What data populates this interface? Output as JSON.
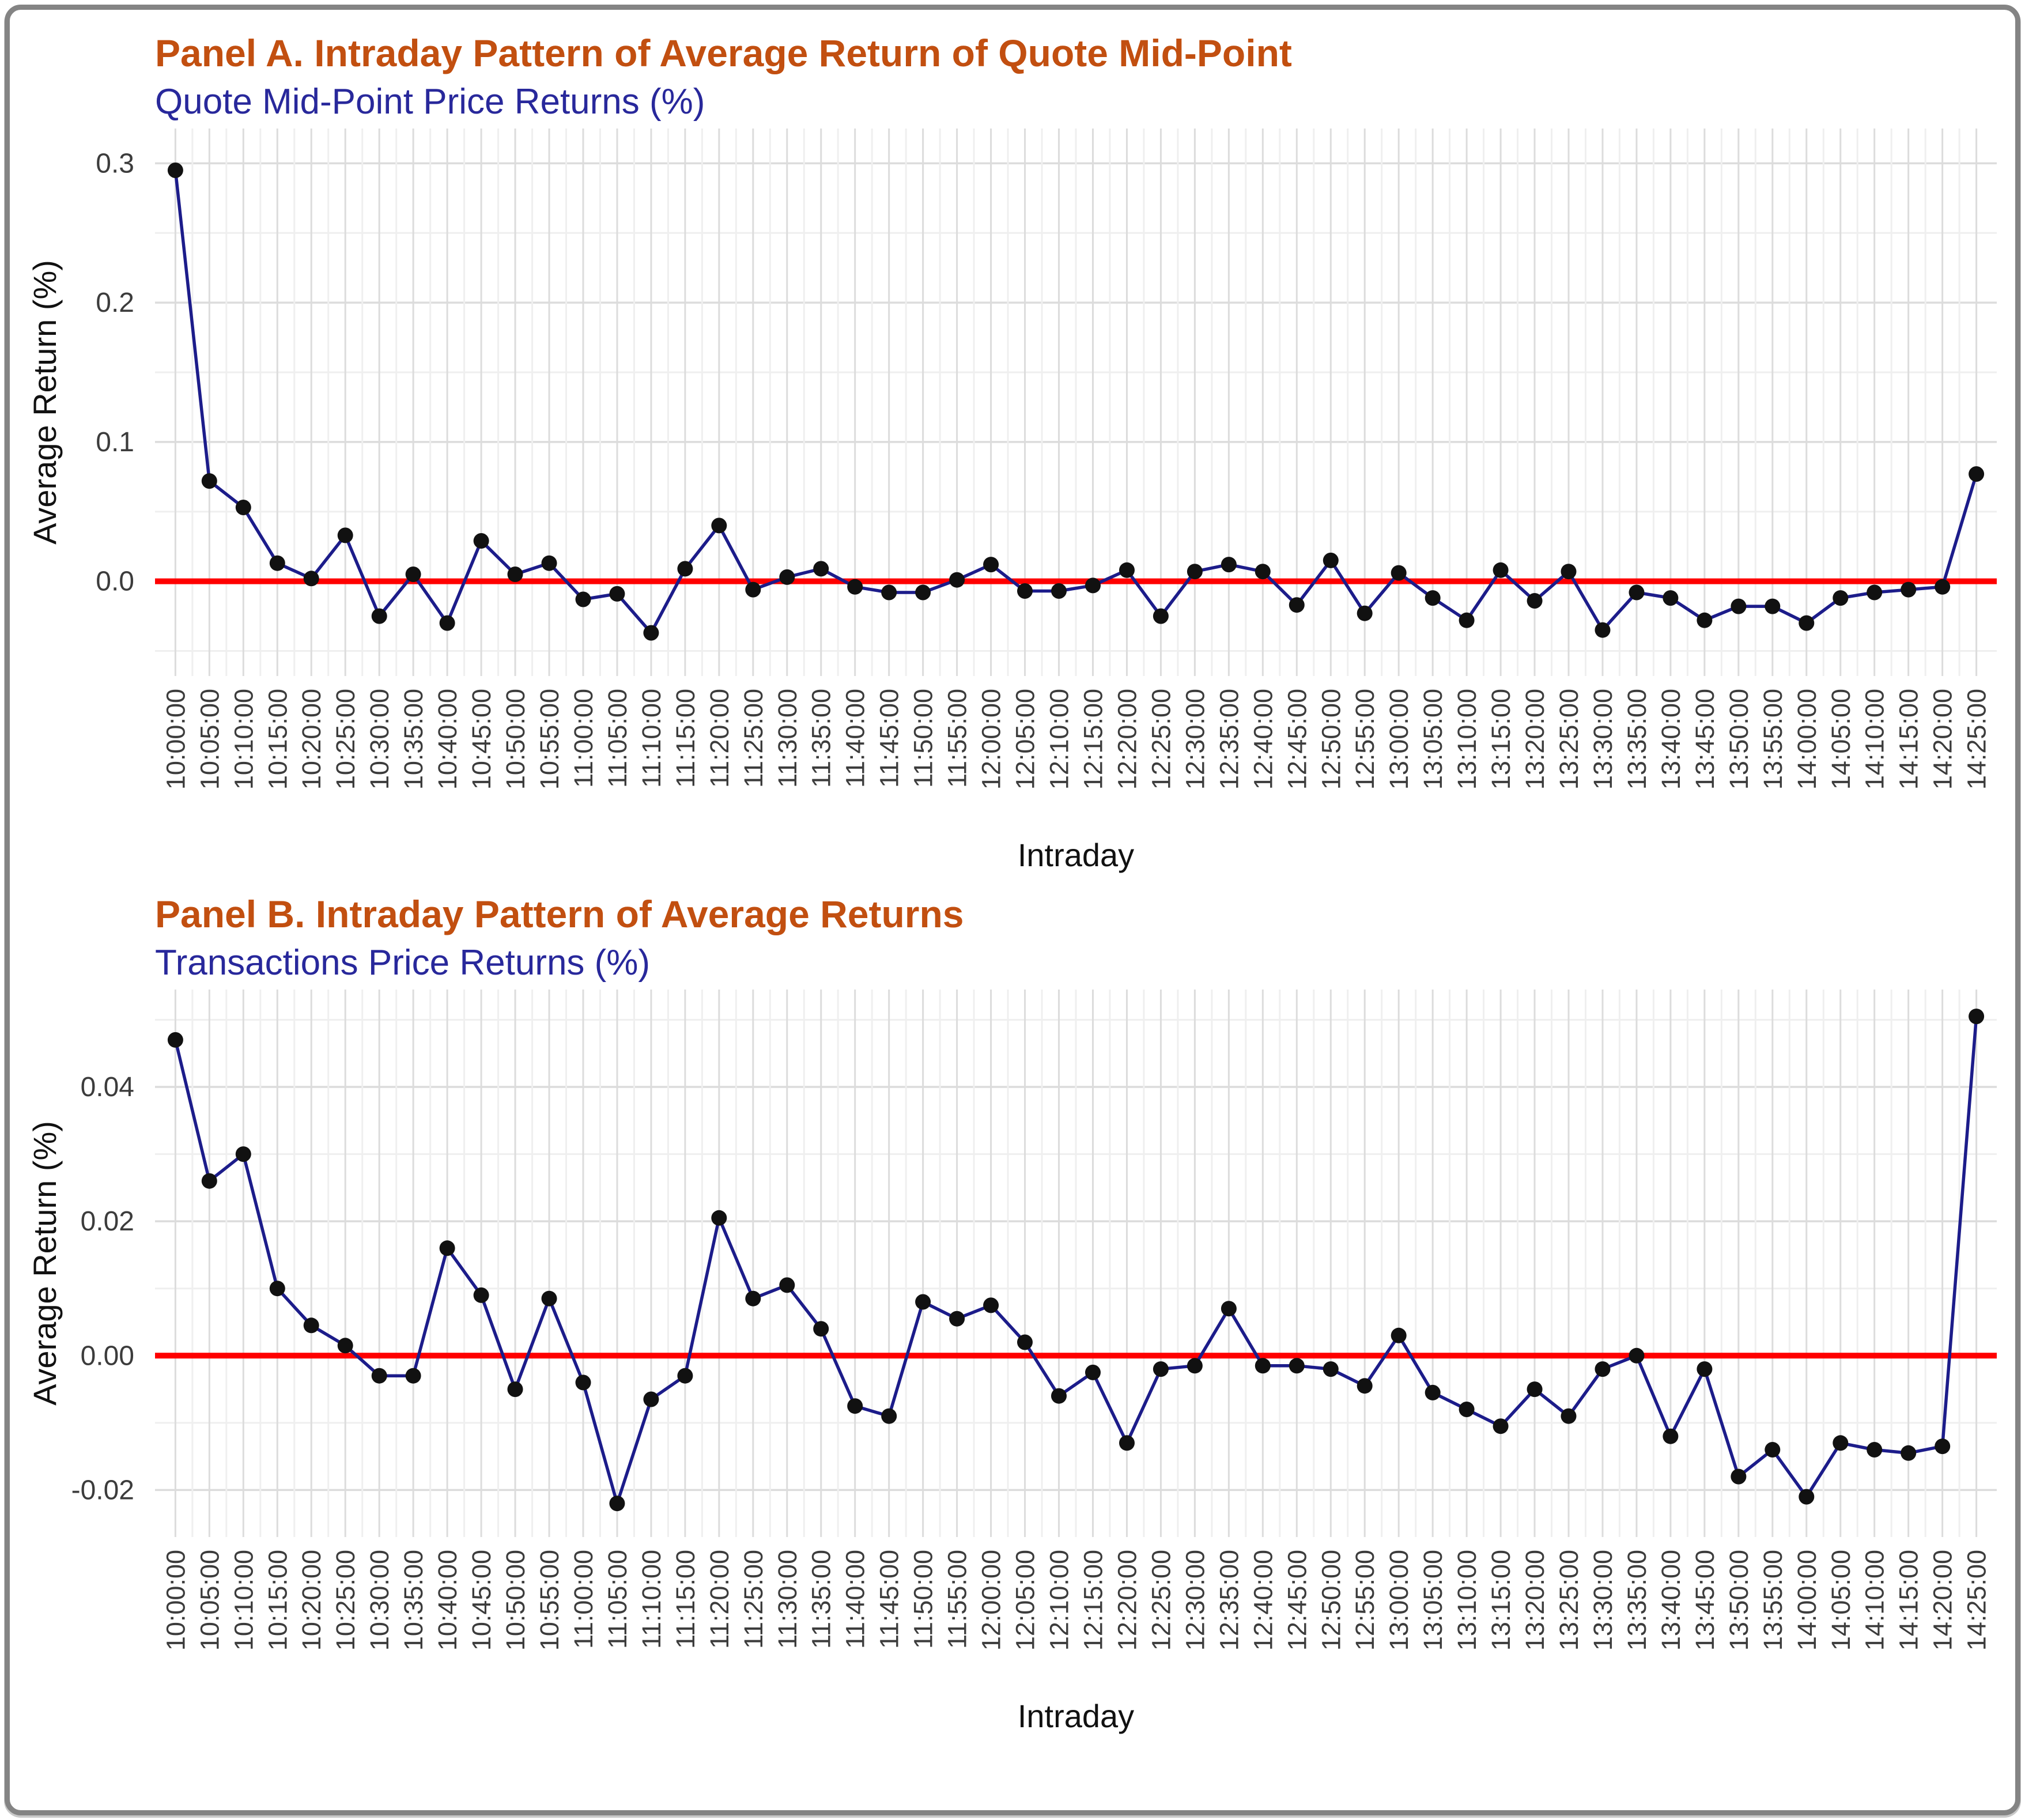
{
  "figure": {
    "frame_border_color": "#848484",
    "background_color": "#ffffff"
  },
  "colors": {
    "panel_title": "#C24F10",
    "panel_subtitle": "#28289B",
    "data_line": "#1C1C8A",
    "data_point": "#111111",
    "zero_line": "#FF0000",
    "grid_major": "#DCDCDC",
    "grid_minor": "#EFEFEF",
    "tick_label": "#3C3C3C",
    "axis_title": "#111111"
  },
  "chart_data": [
    {
      "type": "line",
      "title": "Panel A. Intraday Pattern of Average Return of Quote Mid-Point",
      "subtitle": "Quote Mid-Point Price Returns (%)",
      "xlabel": "Intraday",
      "ylabel": "Average Return (%)",
      "legend_position": "none",
      "grid": true,
      "zero_line": true,
      "ylim": [
        -0.068,
        0.325
      ],
      "y_ticks": [
        0.3,
        0.2,
        0.1,
        0.0
      ],
      "y_tick_labels": [
        "0.3",
        "0.2",
        "0.1",
        "0.0"
      ],
      "y_minor_ticks": [
        0.25,
        0.15,
        0.05,
        -0.05
      ],
      "x": [
        "10:00:00",
        "10:05:00",
        "10:10:00",
        "10:15:00",
        "10:20:00",
        "10:25:00",
        "10:30:00",
        "10:35:00",
        "10:40:00",
        "10:45:00",
        "10:50:00",
        "10:55:00",
        "11:00:00",
        "11:05:00",
        "11:10:00",
        "11:15:00",
        "11:20:00",
        "11:25:00",
        "11:30:00",
        "11:35:00",
        "11:40:00",
        "11:45:00",
        "11:50:00",
        "11:55:00",
        "12:00:00",
        "12:05:00",
        "12:10:00",
        "12:15:00",
        "12:20:00",
        "12:25:00",
        "12:30:00",
        "12:35:00",
        "12:40:00",
        "12:45:00",
        "12:50:00",
        "12:55:00",
        "13:00:00",
        "13:05:00",
        "13:10:00",
        "13:15:00",
        "13:20:00",
        "13:25:00",
        "13:30:00",
        "13:35:00",
        "13:40:00",
        "13:45:00",
        "13:50:00",
        "13:55:00",
        "14:00:00",
        "14:05:00",
        "14:10:00",
        "14:15:00",
        "14:20:00",
        "14:25:00"
      ],
      "values": [
        0.295,
        0.072,
        0.053,
        0.013,
        0.002,
        0.033,
        -0.025,
        0.005,
        -0.03,
        0.029,
        0.005,
        0.013,
        -0.013,
        -0.009,
        -0.037,
        0.009,
        0.04,
        -0.006,
        0.003,
        0.009,
        -0.004,
        -0.008,
        -0.008,
        0.001,
        0.012,
        -0.007,
        -0.007,
        -0.003,
        0.008,
        -0.025,
        0.007,
        0.012,
        0.007,
        -0.017,
        0.015,
        -0.023,
        0.006,
        -0.012,
        -0.028,
        0.008,
        -0.014,
        0.007,
        -0.035,
        -0.008,
        -0.012,
        -0.028,
        -0.018,
        -0.018,
        -0.03,
        -0.012,
        -0.008,
        -0.006,
        -0.004,
        0.077
      ]
    },
    {
      "type": "line",
      "title": "Panel B. Intraday Pattern of Average Returns",
      "subtitle": "Transactions Price Returns (%)",
      "xlabel": "Intraday",
      "ylabel": "Average Return (%)",
      "legend_position": "none",
      "grid": true,
      "zero_line": true,
      "ylim": [
        -0.027,
        0.0545
      ],
      "y_ticks": [
        0.04,
        0.02,
        0.0,
        -0.02
      ],
      "y_tick_labels": [
        "0.04",
        "0.02",
        "0.00",
        "-0.02"
      ],
      "y_minor_ticks": [
        0.05,
        0.03,
        0.01,
        -0.01
      ],
      "x": [
        "10:00:00",
        "10:05:00",
        "10:10:00",
        "10:15:00",
        "10:20:00",
        "10:25:00",
        "10:30:00",
        "10:35:00",
        "10:40:00",
        "10:45:00",
        "10:50:00",
        "10:55:00",
        "11:00:00",
        "11:05:00",
        "11:10:00",
        "11:15:00",
        "11:20:00",
        "11:25:00",
        "11:30:00",
        "11:35:00",
        "11:40:00",
        "11:45:00",
        "11:50:00",
        "11:55:00",
        "12:00:00",
        "12:05:00",
        "12:10:00",
        "12:15:00",
        "12:20:00",
        "12:25:00",
        "12:30:00",
        "12:35:00",
        "12:40:00",
        "12:45:00",
        "12:50:00",
        "12:55:00",
        "13:00:00",
        "13:05:00",
        "13:10:00",
        "13:15:00",
        "13:20:00",
        "13:25:00",
        "13:30:00",
        "13:35:00",
        "13:40:00",
        "13:45:00",
        "13:50:00",
        "13:55:00",
        "14:00:00",
        "14:05:00",
        "14:10:00",
        "14:15:00",
        "14:20:00",
        "14:25:00"
      ],
      "values": [
        0.047,
        0.026,
        0.03,
        0.01,
        0.0045,
        0.0015,
        -0.003,
        -0.003,
        0.016,
        0.009,
        -0.005,
        0.0085,
        -0.004,
        -0.022,
        -0.0065,
        -0.003,
        0.0205,
        0.0085,
        0.0105,
        0.004,
        -0.0075,
        -0.009,
        0.008,
        0.0055,
        0.0075,
        0.002,
        -0.006,
        -0.0025,
        -0.013,
        -0.002,
        -0.0015,
        0.007,
        -0.0015,
        -0.0015,
        -0.002,
        -0.0045,
        0.003,
        -0.0055,
        -0.008,
        -0.0105,
        -0.005,
        -0.009,
        -0.002,
        0.0,
        -0.012,
        -0.002,
        -0.018,
        -0.014,
        -0.021,
        -0.013,
        -0.014,
        -0.0145,
        -0.0135,
        0.0505
      ]
    }
  ]
}
